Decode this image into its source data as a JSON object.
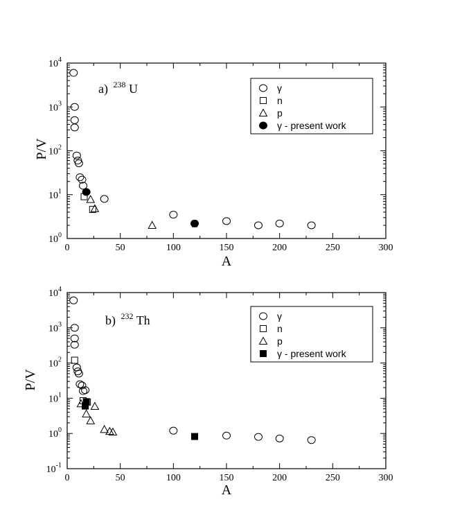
{
  "chart_data": [
    {
      "type": "scatter",
      "panel_label": "a)",
      "nucleus_mass": "238",
      "nucleus_symbol": "U",
      "xlabel": "A",
      "ylabel": "P/V",
      "xlim": [
        0,
        300
      ],
      "ylim": [
        1,
        10000
      ],
      "yscale": "log",
      "xticks": [
        "0",
        "50",
        "100",
        "150",
        "200",
        "250",
        "300"
      ],
      "yticks": [
        {
          "base": "10",
          "exp": "0"
        },
        {
          "base": "10",
          "exp": "1"
        },
        {
          "base": "10",
          "exp": "2"
        },
        {
          "base": "10",
          "exp": "3"
        },
        {
          "base": "10",
          "exp": "4"
        }
      ],
      "grid": false,
      "legend_position": "top-right",
      "series": [
        {
          "name": "γ",
          "marker": "open-circle",
          "points": [
            [
              6,
              6000
            ],
            [
              7,
              1000
            ],
            [
              7,
              500
            ],
            [
              7,
              340
            ],
            [
              9,
              78
            ],
            [
              10,
              60
            ],
            [
              11,
              52
            ],
            [
              12,
              25
            ],
            [
              14,
              22
            ],
            [
              15,
              16
            ],
            [
              35,
              8
            ],
            [
              100,
              3.5
            ],
            [
              150,
              2.5
            ],
            [
              180,
              2.0
            ],
            [
              200,
              2.2
            ],
            [
              230,
              2.0
            ]
          ]
        },
        {
          "name": "n",
          "marker": "open-square",
          "points": [
            [
              16,
              9
            ],
            [
              24,
              4.6
            ]
          ]
        },
        {
          "name": "p",
          "marker": "open-triangle",
          "points": [
            [
              22,
              7.8
            ],
            [
              26,
              4.8
            ],
            [
              80,
              2.0
            ]
          ]
        },
        {
          "name": "γ - present work",
          "marker": "filled-circle",
          "points": [
            [
              18,
              11.5
            ],
            [
              120,
              2.2
            ]
          ],
          "errors": [
            0,
            0.35
          ]
        }
      ]
    },
    {
      "type": "scatter",
      "panel_label": "b)",
      "nucleus_mass": "232",
      "nucleus_symbol": "Th",
      "xlabel": "A",
      "ylabel": "P/V",
      "xlim": [
        0,
        300
      ],
      "ylim": [
        0.1,
        10000
      ],
      "yscale": "log",
      "xticks": [
        "0",
        "50",
        "100",
        "150",
        "200",
        "250",
        "300"
      ],
      "yticks": [
        {
          "base": "10",
          "exp": "-1"
        },
        {
          "base": "10",
          "exp": "0"
        },
        {
          "base": "10",
          "exp": "1"
        },
        {
          "base": "10",
          "exp": "2"
        },
        {
          "base": "10",
          "exp": "3"
        },
        {
          "base": "10",
          "exp": "4"
        }
      ],
      "grid": false,
      "legend_position": "top-right",
      "series": [
        {
          "name": "γ",
          "marker": "open-circle",
          "points": [
            [
              6,
              6000
            ],
            [
              7,
              1000
            ],
            [
              7,
              500
            ],
            [
              7,
              330
            ],
            [
              9,
              75
            ],
            [
              10,
              58
            ],
            [
              11,
              50
            ],
            [
              12,
              25
            ],
            [
              14,
              23
            ],
            [
              15,
              16
            ],
            [
              17,
              17
            ],
            [
              100,
              1.2
            ],
            [
              150,
              0.87
            ],
            [
              180,
              0.8
            ],
            [
              200,
              0.72
            ],
            [
              230,
              0.65
            ]
          ]
        },
        {
          "name": "n",
          "marker": "open-square",
          "points": [
            [
              7,
              120
            ],
            [
              15,
              8.5
            ],
            [
              19,
              7.8
            ]
          ]
        },
        {
          "name": "p",
          "marker": "open-triangle",
          "points": [
            [
              13,
              7.0
            ],
            [
              18,
              3.6
            ],
            [
              22,
              2.3
            ],
            [
              26,
              5.9
            ],
            [
              35,
              1.3
            ],
            [
              40,
              1.15
            ],
            [
              43,
              1.1
            ]
          ]
        },
        {
          "name": "γ - present work",
          "marker": "filled-square",
          "points": [
            [
              18,
              8.0
            ],
            [
              17,
              6.0
            ],
            [
              120,
              0.82
            ]
          ],
          "errors": [
            0,
            0,
            0.1
          ]
        }
      ]
    }
  ]
}
